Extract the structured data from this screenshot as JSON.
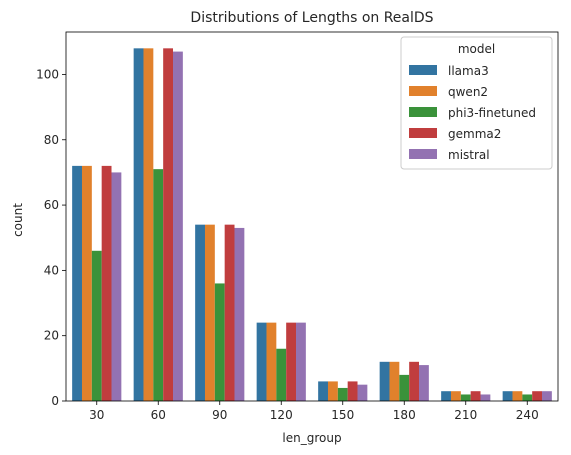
{
  "chart_data": {
    "type": "bar",
    "title": "Distributions of Lengths on RealDS",
    "xlabel": "len_group",
    "ylabel": "count",
    "ylim": [
      0,
      113
    ],
    "yticks": [
      0,
      20,
      40,
      60,
      80,
      100
    ],
    "categories": [
      "30",
      "60",
      "90",
      "120",
      "150",
      "180",
      "210",
      "240"
    ],
    "grid": false,
    "legend": {
      "title": "model",
      "placement": "top-right"
    },
    "series": [
      {
        "name": "llama3",
        "color": "#3274a1",
        "values": [
          72,
          108,
          54,
          24,
          6,
          12,
          3,
          3
        ]
      },
      {
        "name": "qwen2",
        "color": "#e1812c",
        "values": [
          72,
          108,
          54,
          24,
          6,
          12,
          3,
          3
        ]
      },
      {
        "name": "phi3-finetuned",
        "color": "#3a923a",
        "values": [
          46,
          71,
          36,
          16,
          4,
          8,
          2,
          2
        ]
      },
      {
        "name": "gemma2",
        "color": "#c03d3e",
        "values": [
          72,
          108,
          54,
          24,
          6,
          12,
          3,
          3
        ]
      },
      {
        "name": "mistral",
        "color": "#9372b2",
        "values": [
          70,
          107,
          53,
          24,
          5,
          11,
          2,
          3
        ]
      }
    ]
  }
}
